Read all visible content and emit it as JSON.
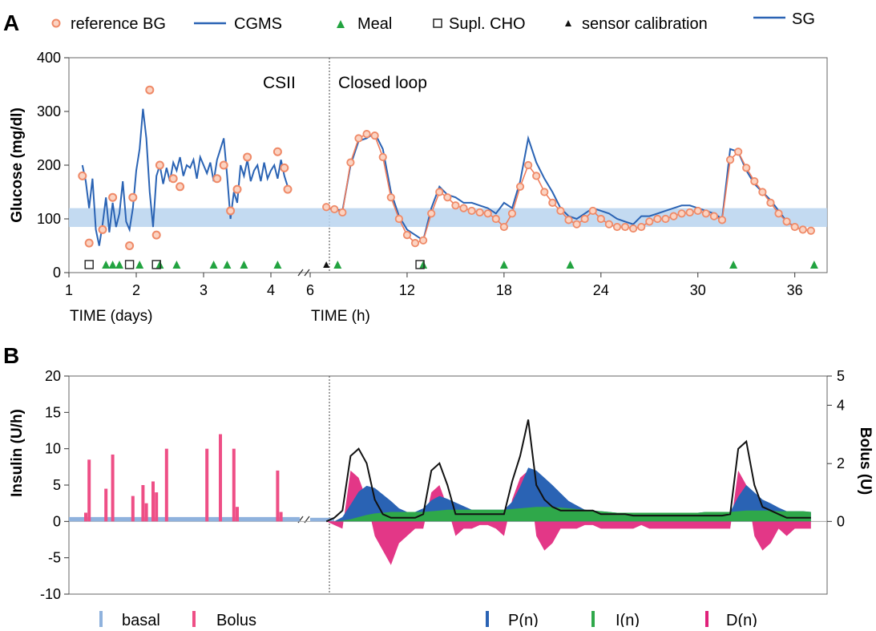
{
  "colors": {
    "cgms": "#2a63b4",
    "ref_fill": "#fbd3c2",
    "ref_stroke": "#ef8a68",
    "ref_line": "#ef7c5c",
    "meal": "#22a340",
    "target_band": "#b9d3ee",
    "bolus": "#ee4f86",
    "basal": "#8fb2dd",
    "p_term": "#2a63b4",
    "i_term": "#2fa84a",
    "d_term": "#e0217a",
    "total": "#111111"
  },
  "icons": {
    "reference_bg": "circle-marker",
    "meal": "triangle-marker",
    "supl_cho": "open-square-marker",
    "calibration": "small-triangle-marker"
  },
  "chart_data": [
    {
      "panel_label": "A",
      "type": "line",
      "legend": [
        "reference BG",
        "CGMS",
        "Meal",
        "Supl. CHO",
        "sensor calibration",
        "SG"
      ],
      "ylabel": "Glucose (mg/dl)",
      "ylim": [
        0,
        400
      ],
      "y_ticks": [
        "0",
        "100",
        "200",
        "300",
        "400"
      ],
      "target_range": [
        85,
        120
      ],
      "target_range_band": true,
      "left": {
        "title": "CSII",
        "xlabel": "TIME (days)",
        "xlim": [
          1,
          4.5
        ],
        "x_ticks": [
          "1",
          "2",
          "3",
          "4"
        ],
        "cgms": {
          "x": [
            1.2,
            1.25,
            1.3,
            1.35,
            1.4,
            1.45,
            1.5,
            1.55,
            1.6,
            1.65,
            1.7,
            1.75,
            1.8,
            1.85,
            1.9,
            1.95,
            2.0,
            2.05,
            2.1,
            2.15,
            2.2,
            2.25,
            2.3,
            2.35,
            2.4,
            2.45,
            2.5,
            2.55,
            2.6,
            2.65,
            2.7,
            2.75,
            2.8,
            2.85,
            2.9,
            2.95,
            3.0,
            3.05,
            3.1,
            3.15,
            3.2,
            3.25,
            3.3,
            3.35,
            3.4,
            3.45,
            3.5,
            3.55,
            3.6,
            3.65,
            3.7,
            3.75,
            3.8,
            3.85,
            3.9,
            3.95,
            4.0,
            4.05,
            4.1,
            4.15,
            4.2,
            4.25
          ],
          "y": [
            200,
            170,
            120,
            175,
            80,
            50,
            90,
            140,
            75,
            130,
            85,
            110,
            170,
            95,
            80,
            120,
            190,
            230,
            305,
            250,
            150,
            85,
            180,
            200,
            165,
            195,
            170,
            205,
            190,
            215,
            180,
            200,
            195,
            210,
            175,
            215,
            200,
            185,
            205,
            170,
            210,
            230,
            250,
            180,
            100,
            150,
            130,
            200,
            180,
            210,
            170,
            190,
            200,
            170,
            205,
            175,
            190,
            200,
            175,
            210,
            180,
            160
          ],
          "label": "CGMS"
        },
        "reference_bg": {
          "x": [
            1.2,
            1.3,
            1.5,
            1.65,
            1.9,
            1.95,
            2.2,
            2.3,
            2.35,
            2.55,
            2.65,
            3.2,
            3.3,
            3.4,
            3.5,
            3.65,
            4.1,
            4.2,
            4.25
          ],
          "y": [
            180,
            55,
            80,
            140,
            50,
            140,
            340,
            70,
            200,
            175,
            160,
            175,
            200,
            115,
            155,
            215,
            225,
            195,
            155
          ],
          "label": "reference BG"
        },
        "meals_x": [
          1.55,
          1.65,
          1.75,
          2.05,
          2.35,
          2.6,
          3.15,
          3.35,
          3.6,
          4.1
        ],
        "supl_cho_x": [
          1.3,
          1.9,
          2.3
        ]
      },
      "right": {
        "title": "Closed loop",
        "xlabel": "TIME (h)",
        "xlim": [
          6,
          38
        ],
        "x_ticks": [
          "6",
          "12",
          "18",
          "24",
          "30",
          "36"
        ],
        "sg": {
          "x": [
            7,
            7.5,
            8,
            8.5,
            9,
            9.5,
            10,
            10.5,
            11,
            11.5,
            12,
            12.5,
            13,
            13.5,
            14,
            14.5,
            15,
            15.5,
            16,
            16.5,
            17,
            17.5,
            18,
            18.5,
            19,
            19.5,
            20,
            20.5,
            21,
            21.5,
            22,
            22.5,
            23,
            23.5,
            24,
            24.5,
            25,
            25.5,
            26,
            26.5,
            27,
            27.5,
            28,
            28.5,
            29,
            29.5,
            30,
            30.5,
            31,
            31.5,
            32,
            32.5,
            33,
            33.5,
            34,
            34.5,
            35,
            35.5,
            36,
            36.5,
            37
          ],
          "y": [
            120,
            118,
            115,
            200,
            245,
            250,
            260,
            230,
            150,
            105,
            80,
            70,
            60,
            120,
            160,
            145,
            140,
            130,
            130,
            125,
            120,
            110,
            130,
            120,
            170,
            250,
            205,
            175,
            150,
            120,
            105,
            100,
            110,
            120,
            115,
            110,
            100,
            95,
            90,
            105,
            105,
            110,
            115,
            120,
            125,
            125,
            120,
            115,
            110,
            100,
            230,
            225,
            190,
            165,
            150,
            135,
            115,
            95,
            85,
            80,
            78
          ],
          "label": "SG"
        },
        "reference_bg": {
          "x": [
            7,
            7.5,
            8,
            8.5,
            9,
            9.5,
            10,
            10.5,
            11,
            11.5,
            12,
            12.5,
            13,
            13.5,
            14,
            14.5,
            15,
            15.5,
            16,
            16.5,
            17,
            17.5,
            18,
            18.5,
            19,
            19.5,
            20,
            20.5,
            21,
            21.5,
            22,
            22.5,
            23,
            23.5,
            24,
            24.5,
            25,
            25.5,
            26,
            26.5,
            27,
            27.5,
            28,
            28.5,
            29,
            29.5,
            30,
            30.5,
            31,
            31.5,
            32,
            32.5,
            33,
            33.5,
            34,
            34.5,
            35,
            35.5,
            36,
            36.5,
            37
          ],
          "y": [
            122,
            118,
            112,
            205,
            250,
            258,
            255,
            215,
            140,
            100,
            70,
            55,
            60,
            110,
            150,
            140,
            125,
            120,
            115,
            112,
            110,
            100,
            85,
            110,
            160,
            200,
            180,
            150,
            130,
            115,
            98,
            90,
            100,
            115,
            100,
            90,
            85,
            85,
            82,
            85,
            95,
            100,
            100,
            105,
            110,
            112,
            115,
            110,
            105,
            98,
            210,
            225,
            195,
            170,
            150,
            130,
            110,
            95,
            85,
            80,
            78
          ],
          "label": "reference BG"
        },
        "meals_x": [
          7.7,
          13,
          18,
          22.1,
          32.2,
          37.2
        ],
        "supl_cho_x": [
          12.8
        ],
        "sensor_calibration_x": [
          7
        ]
      }
    },
    {
      "panel_label": "B",
      "type": "bar",
      "ylabel": "Insulin (U/h)",
      "ylim": [
        -10,
        20
      ],
      "y_ticks": [
        "20",
        "15",
        "10",
        "5",
        "0",
        "-5",
        "-10"
      ],
      "y2label": "Bolus (U)",
      "y2lim": [
        0,
        5
      ],
      "y2_ticks": [
        "5",
        "4",
        "2",
        "0"
      ],
      "legend": [
        "basal",
        "Bolus",
        "P(n)",
        "I(n)",
        "D(n)"
      ],
      "left": {
        "xlim": [
          1,
          4.5
        ],
        "basal_rate": 0.6,
        "bolus_bars": {
          "x": [
            1.25,
            1.3,
            1.55,
            1.65,
            1.95,
            2.1,
            2.15,
            2.25,
            2.3,
            2.45,
            3.05,
            3.25,
            3.45,
            3.5,
            4.1,
            4.15
          ],
          "y": [
            1.2,
            8.5,
            4.5,
            9.2,
            3.5,
            5.0,
            2.5,
            5.5,
            4.0,
            10.0,
            10.0,
            12.0,
            10.0,
            2.0,
            7.0,
            1.3
          ],
          "label": "Bolus"
        }
      },
      "right": {
        "xlim": [
          6,
          38
        ],
        "x": [
          7,
          7.5,
          8,
          8.5,
          9,
          9.5,
          10,
          10.5,
          11,
          11.5,
          12,
          12.5,
          13,
          13.5,
          14,
          14.5,
          15,
          15.5,
          16,
          16.5,
          17,
          17.5,
          18,
          18.5,
          19,
          19.5,
          20,
          20.5,
          21,
          21.5,
          22,
          22.5,
          23,
          23.5,
          24,
          24.5,
          25,
          25.5,
          26,
          26.5,
          27,
          27.5,
          28,
          28.5,
          29,
          29.5,
          30,
          30.5,
          31,
          31.5,
          32,
          32.5,
          33,
          33.5,
          34,
          34.5,
          35,
          35.5,
          36,
          36.5,
          37
        ],
        "P": [
          0,
          0,
          0.5,
          2,
          3.5,
          4,
          3.5,
          2.5,
          1.5,
          0.5,
          0,
          0,
          0.5,
          1.5,
          2,
          1.5,
          1,
          0.5,
          0,
          0,
          0,
          0,
          0,
          1,
          3,
          5.5,
          5,
          4,
          3,
          2,
          1,
          0.5,
          0,
          0,
          0,
          0,
          0,
          0,
          0,
          0,
          0,
          0,
          0,
          0,
          0,
          0,
          0,
          0,
          0,
          0,
          0,
          2,
          3.5,
          2.5,
          1.5,
          1,
          0.5,
          0,
          0,
          0,
          0
        ],
        "I": [
          0,
          0,
          0.1,
          0.3,
          0.6,
          0.9,
          1.1,
          1.2,
          1.3,
          1.3,
          1.3,
          1.3,
          1.3,
          1.4,
          1.5,
          1.6,
          1.6,
          1.6,
          1.6,
          1.6,
          1.6,
          1.6,
          1.6,
          1.7,
          1.8,
          1.9,
          2.0,
          2.0,
          2.0,
          1.9,
          1.8,
          1.7,
          1.6,
          1.5,
          1.4,
          1.3,
          1.2,
          1.2,
          1.2,
          1.2,
          1.2,
          1.2,
          1.2,
          1.2,
          1.2,
          1.2,
          1.2,
          1.3,
          1.3,
          1.3,
          1.3,
          1.4,
          1.5,
          1.5,
          1.5,
          1.5,
          1.4,
          1.4,
          1.4,
          1.4,
          1.3
        ],
        "D": [
          0,
          -0.5,
          -1,
          7,
          6,
          3,
          -2,
          -4,
          -6,
          -3,
          -2,
          -1,
          -1,
          4,
          5,
          2,
          -2,
          -1,
          -1,
          -0.5,
          -0.5,
          -1,
          -2,
          3,
          6,
          7,
          -2,
          -4,
          -3,
          -1,
          -1,
          -1,
          -0.5,
          -0.5,
          -1,
          -1,
          -1,
          -1,
          -1,
          -0.5,
          -1,
          -1,
          -1,
          -1,
          -1,
          -1,
          -1,
          -1,
          -1,
          -1,
          -1,
          7,
          5,
          -2,
          -4,
          -3,
          -1,
          -2,
          -1,
          -1,
          -1
        ],
        "total": [
          0,
          0.5,
          1.5,
          9,
          10,
          8,
          3,
          1,
          0.5,
          0.5,
          0.5,
          0.5,
          1,
          7,
          8,
          5,
          1,
          1,
          1,
          1,
          1,
          1,
          1,
          5.5,
          9,
          14,
          5,
          3,
          2,
          1.5,
          1.5,
          1.5,
          1.5,
          1.5,
          1,
          1,
          1,
          1,
          0.8,
          0.8,
          0.8,
          0.8,
          0.8,
          0.8,
          0.8,
          0.8,
          0.8,
          0.8,
          0.8,
          0.8,
          1,
          10,
          11,
          5,
          2,
          1.5,
          1,
          0.5,
          0.5,
          0.5,
          0.5
        ]
      }
    }
  ],
  "legend_bottom": {
    "basal": "basal",
    "bolus": "Bolus",
    "p": "P(n)",
    "i": "I(n)",
    "d": "D(n)"
  }
}
